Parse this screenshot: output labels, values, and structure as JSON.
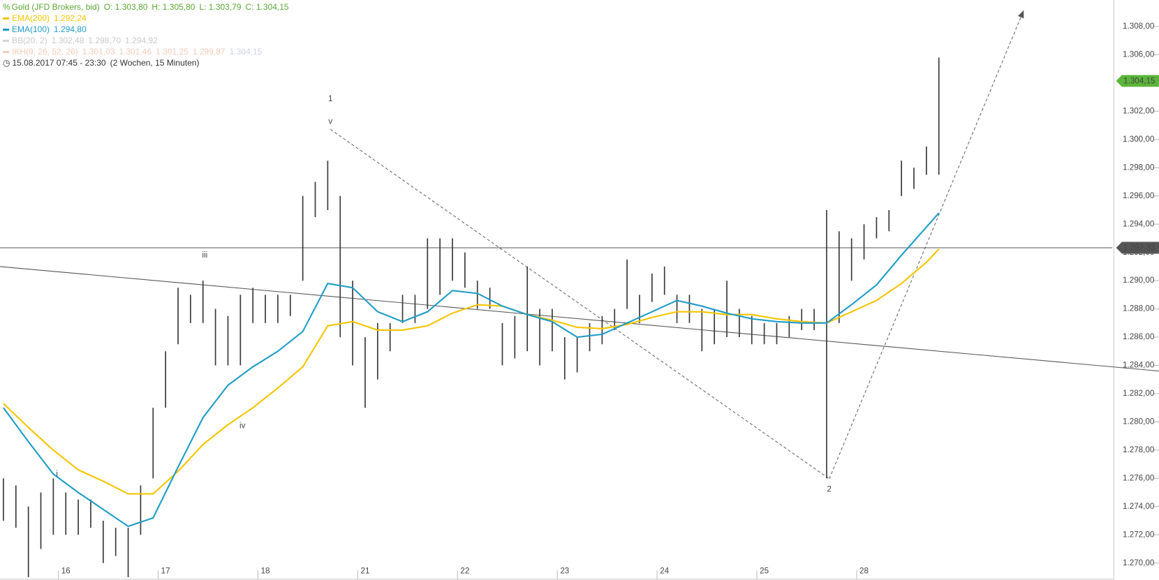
{
  "chart_data": {
    "type": "ohlc",
    "header": {
      "title": "Gold (JFD Brokers, bid)",
      "ohlc": [
        "O: 1.303,80",
        "H: 1.305,80",
        "L: 1.303,79",
        "C: 1.304,15"
      ],
      "bb": {
        "name": "BB(20, 2)",
        "values": [
          "1.302,48",
          "1.298,70",
          "1.294,92"
        ]
      },
      "ikh": {
        "name": "IKH(9, 26, 52, 26)",
        "values": [
          "1.301,03",
          "1.301,46",
          "1.301,25",
          "1.299,87",
          "1.304,15"
        ]
      },
      "period": "15.08.2017 07:45 - 23:30",
      "period_note": "(2 Wochen, 15 Minuten)"
    },
    "xlim": [
      -0.659,
      10.489
    ],
    "xticks": [
      {
        "value": 0,
        "label": "16"
      },
      {
        "value": 1,
        "label": "17"
      },
      {
        "value": 2,
        "label": "18"
      },
      {
        "value": 3,
        "label": "21"
      },
      {
        "value": 4,
        "label": "22"
      },
      {
        "value": 5,
        "label": "23"
      },
      {
        "value": 6,
        "label": "24"
      },
      {
        "value": 7,
        "label": "25"
      },
      {
        "value": 8,
        "label": "28"
      }
    ],
    "ylim": [
      1268.8,
      1309.88
    ],
    "yticks": [
      {
        "value": 1270,
        "label": "1.270,00"
      },
      {
        "value": 1272,
        "label": "1.272,00"
      },
      {
        "value": 1274,
        "label": "1.274,00"
      },
      {
        "value": 1276,
        "label": "1.276,00"
      },
      {
        "value": 1278,
        "label": "1.278,00"
      },
      {
        "value": 1280,
        "label": "1.280,00"
      },
      {
        "value": 1282,
        "label": "1.282,00"
      },
      {
        "value": 1284,
        "label": "1.284,00"
      },
      {
        "value": 1286,
        "label": "1.286,00"
      },
      {
        "value": 1288,
        "label": "1.288,00"
      },
      {
        "value": 1290,
        "label": "1.290,00"
      },
      {
        "value": 1292,
        "label": "1.292,00"
      },
      {
        "value": 1294,
        "label": "1.294,00"
      },
      {
        "value": 1296,
        "label": "1.296,00"
      },
      {
        "value": 1298,
        "label": "1.298,00"
      },
      {
        "value": 1300,
        "label": "1.300,00"
      },
      {
        "value": 1302,
        "label": "1.302,00"
      },
      {
        "value": 1304,
        "label": "1.304,00"
      },
      {
        "value": 1306,
        "label": "1.306,00"
      },
      {
        "value": 1308,
        "label": "1.308,00"
      }
    ],
    "series": [
      {
        "type": "ohlc",
        "color": "#3a3a3a",
        "x": [
          -0.625,
          -0.5,
          -0.375,
          -0.25,
          -0.125,
          0,
          0.125,
          0.25,
          0.375,
          0.5,
          0.625,
          0.75,
          0.875,
          1,
          1.125,
          1.25,
          1.375,
          1.5,
          1.625,
          1.75,
          1.875,
          2,
          2.125,
          2.25,
          2.375,
          2.5,
          2.625,
          2.75,
          2.875,
          3,
          3.125,
          3.25,
          3.375,
          3.5,
          3.625,
          3.75,
          3.875,
          4,
          4.125,
          4.25,
          4.375,
          4.5,
          4.625,
          4.75,
          4.875,
          5,
          5.125,
          5.25,
          5.375,
          5.5,
          5.625,
          5.75,
          5.875,
          6,
          6.125,
          6.25,
          6.375,
          6.5,
          6.625,
          6.75,
          6.875,
          7,
          7.125,
          7.25,
          7.375,
          7.5,
          7.625,
          7.75,
          7.875,
          8,
          8.125,
          8.25,
          8.375,
          8.5,
          8.625,
          8.75
        ],
        "low": [
          1273,
          1272.5,
          1269,
          1271,
          1272,
          1272,
          1272,
          1272.5,
          1270,
          1270.5,
          1269,
          1272,
          1276,
          1281,
          1285.5,
          1287,
          1287,
          1284,
          1284,
          1284,
          1287,
          1287,
          1287,
          1287.5,
          1290,
          1294.5,
          1295,
          1286,
          1284,
          1281,
          1283,
          1285,
          1287,
          1287,
          1288,
          1289,
          1290,
          1289.5,
          1288,
          1288,
          1284,
          1284.5,
          1285,
          1284,
          1285,
          1283,
          1283.5,
          1285,
          1285.5,
          1286.5,
          1288,
          1287,
          1288.5,
          1289,
          1287,
          1287,
          1285,
          1285.5,
          1286,
          1286,
          1285.5,
          1285.5,
          1285.5,
          1286,
          1286.5,
          1286.5,
          1276,
          1287,
          1290,
          1291.5,
          1293,
          1293.5,
          1296,
          1296.5,
          1297.5,
          1297.5
        ],
        "high": [
          1276,
          1275.5,
          1274,
          1275,
          1276,
          1275,
          1274.5,
          1274.5,
          1273,
          1272.5,
          1272.5,
          1275.5,
          1281,
          1285,
          1289.5,
          1289,
          1290,
          1288,
          1287.5,
          1289,
          1289.5,
          1289,
          1289,
          1289,
          1296,
          1297,
          1298.5,
          1296,
          1290,
          1286,
          1287,
          1287,
          1289,
          1289,
          1293,
          1293,
          1293,
          1292,
          1290,
          1289.5,
          1287,
          1287.5,
          1291,
          1288,
          1288,
          1286,
          1286,
          1287,
          1287.5,
          1288,
          1291.5,
          1289,
          1290.5,
          1291,
          1289,
          1289,
          1288,
          1288,
          1290,
          1288,
          1287.5,
          1287,
          1287,
          1287.5,
          1288,
          1288,
          1295,
          1293.5,
          1293,
          1294,
          1294.5,
          1295,
          1298.5,
          1298,
          1299.5,
          1305.8
        ]
      },
      {
        "type": "line",
        "name": "EMA(200)",
        "value_label": "1.292,24",
        "color": "#f5c400",
        "x": [
          -0.625,
          -0.375,
          -0.125,
          0.125,
          0.375,
          0.625,
          0.875,
          1.125,
          1.375,
          1.625,
          1.875,
          2.125,
          2.375,
          2.625,
          2.875,
          3.125,
          3.375,
          3.625,
          3.875,
          4.125,
          4.375,
          4.625,
          4.875,
          5.125,
          5.375,
          5.625,
          5.875,
          6.125,
          6.375,
          6.625,
          6.875,
          7.125,
          7.375,
          7.625,
          7.875,
          8.125,
          8.375,
          8.625,
          8.75
        ],
        "values": [
          1281.3,
          1279.6,
          1278.0,
          1276.6,
          1275.8,
          1274.9,
          1274.9,
          1276.5,
          1278.4,
          1279.8,
          1281.0,
          1282.4,
          1283.9,
          1286.8,
          1287.1,
          1286.5,
          1286.5,
          1286.8,
          1287.7,
          1288.3,
          1288.2,
          1287.6,
          1287.2,
          1286.7,
          1286.6,
          1286.9,
          1287.4,
          1287.8,
          1287.8,
          1287.6,
          1287.6,
          1287.3,
          1287.1,
          1287.0,
          1287.8,
          1288.6,
          1289.8,
          1291.3,
          1292.24
        ]
      },
      {
        "type": "line",
        "name": "EMA(100)",
        "value_label": "1.294,80",
        "color": "#1f9cc7",
        "x": [
          -0.625,
          -0.375,
          -0.125,
          0.125,
          0.375,
          0.625,
          0.875,
          1.125,
          1.375,
          1.625,
          1.875,
          2.125,
          2.375,
          2.625,
          2.875,
          3.125,
          3.375,
          3.625,
          3.875,
          4.125,
          4.375,
          4.625,
          4.875,
          5.125,
          5.375,
          5.625,
          5.875,
          6.125,
          6.375,
          6.625,
          6.875,
          7.125,
          7.375,
          7.625,
          7.875,
          8.125,
          8.375,
          8.625,
          8.75
        ],
        "values": [
          1281.0,
          1278.6,
          1276.3,
          1275.0,
          1273.8,
          1272.6,
          1273.2,
          1276.8,
          1280.3,
          1282.6,
          1283.9,
          1285.0,
          1286.4,
          1289.8,
          1289.5,
          1287.8,
          1287.1,
          1287.8,
          1289.3,
          1289.1,
          1288.2,
          1287.6,
          1287.1,
          1286.0,
          1286.2,
          1287.0,
          1287.8,
          1288.6,
          1288.2,
          1287.7,
          1287.3,
          1287.1,
          1287.0,
          1287.0,
          1288.3,
          1289.7,
          1291.8,
          1293.8,
          1294.8
        ]
      }
    ],
    "hline": {
      "value": 1292.33,
      "label": "1.292,33",
      "color": "#555555"
    },
    "last_price": {
      "value": 1304.15,
      "label": "1.304,15",
      "color": "#5bb53a"
    },
    "trendlines": [
      {
        "style": "solid",
        "x": [
          -0.659,
          10.956
        ],
        "y": [
          1291.0,
          1283.6
        ]
      },
      {
        "style": "dashed",
        "x": [
          2.652,
          7.652,
          9.6
        ],
        "y": [
          1300.72,
          1275.97,
          1309.15
        ]
      }
    ],
    "annotations": [
      {
        "text": "1",
        "x": 2.652,
        "y": 1302.87
      },
      {
        "text": "v",
        "x": 2.652,
        "y": 1301.25
      },
      {
        "text": "iii",
        "x": 1.393,
        "y": 1291.8
      },
      {
        "text": "iv",
        "x": 1.77,
        "y": 1279.7
      },
      {
        "text": "i",
        "x": -0.089,
        "y": 1276.3
      },
      {
        "text": "2",
        "x": 7.652,
        "y": 1275.2
      }
    ]
  }
}
